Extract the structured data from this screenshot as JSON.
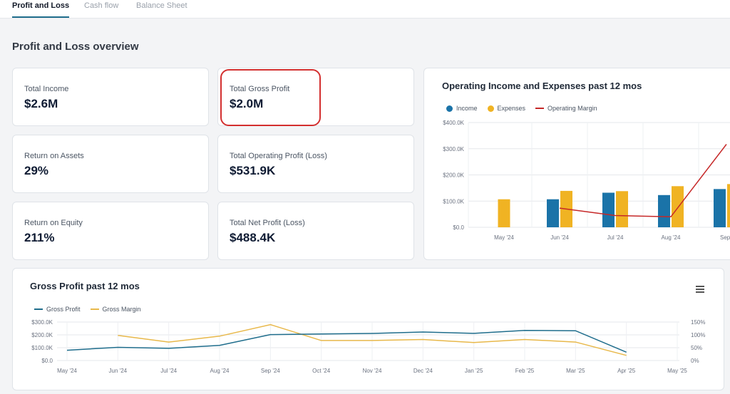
{
  "tabs": [
    {
      "label": "Profit and Loss",
      "active": true
    },
    {
      "label": "Cash flow",
      "active": false
    },
    {
      "label": "Balance Sheet",
      "active": false
    }
  ],
  "section_title": "Profit and Loss overview",
  "kpis": {
    "total_income": {
      "label": "Total Income",
      "value": "$2.6M"
    },
    "total_gross_profit": {
      "label": "Total Gross Profit",
      "value": "$2.0M"
    },
    "return_on_assets": {
      "label": "Return on Assets",
      "value": "29%"
    },
    "total_operating_profit": {
      "label": "Total Operating Profit (Loss)",
      "value": "$531.9K"
    },
    "return_on_equity": {
      "label": "Return on Equity",
      "value": "211%"
    },
    "total_net_profit": {
      "label": "Total Net Profit (Loss)",
      "value": "$488.4K"
    }
  },
  "colors": {
    "income": "#1a73a8",
    "expenses": "#f0b323",
    "operating_margin": "#c62828",
    "gross_profit": "#1f6d8c",
    "gross_margin": "#e8b84a",
    "highlight": "#d32f2f"
  },
  "chart_data": [
    {
      "type": "bar",
      "title": "Operating Income and Expenses past 12 mos",
      "legend": [
        "Income",
        "Expenses",
        "Operating Margin"
      ],
      "legend_position": "top-left",
      "categories": [
        "May '24",
        "Jun '24",
        "Jul '24",
        "Aug '24",
        "Sep '"
      ],
      "y_ticks": [
        "$400.0K",
        "$300.0K",
        "$200.0K",
        "$100.0K",
        "$0.0"
      ],
      "ylim": [
        0,
        400000
      ],
      "series": [
        {
          "name": "Income",
          "values": [
            0,
            107000,
            132000,
            123000,
            146000
          ]
        },
        {
          "name": "Expenses",
          "values": [
            107000,
            139000,
            138000,
            157000,
            165000
          ]
        },
        {
          "name": "Operating Margin",
          "type": "line",
          "values": [
            null,
            73000,
            45000,
            40000,
            317000
          ]
        }
      ],
      "grid": true
    },
    {
      "type": "line",
      "title": "Gross Profit past 12 mos",
      "legend": [
        "Gross Profit",
        "Gross Margin"
      ],
      "legend_position": "top-left",
      "categories": [
        "May '24",
        "Jun '24",
        "Jul '24",
        "Aug '24",
        "Sep '24",
        "Oct '24",
        "Nov '24",
        "Dec '24",
        "Jan '25",
        "Feb '25",
        "Mar '25",
        "Apr '25",
        "May '25"
      ],
      "y_ticks_left": [
        "$300.0K",
        "$200.0K",
        "$100.0K",
        "$0.0"
      ],
      "y_ticks_right": [
        "150%",
        "100%",
        "50%",
        "0%"
      ],
      "ylim_left": [
        0,
        300000
      ],
      "ylim_right": [
        0,
        150
      ],
      "series": [
        {
          "name": "Gross Profit",
          "axis": "left",
          "values": [
            80000,
            103000,
            95000,
            118000,
            202000,
            207000,
            211000,
            222000,
            212000,
            235000,
            232000,
            65000,
            null
          ]
        },
        {
          "name": "Gross Margin",
          "axis": "right",
          "values": [
            null,
            98,
            72,
            95,
            140,
            78,
            78,
            82,
            70,
            82,
            72,
            20,
            null
          ]
        }
      ],
      "grid": true
    }
  ]
}
